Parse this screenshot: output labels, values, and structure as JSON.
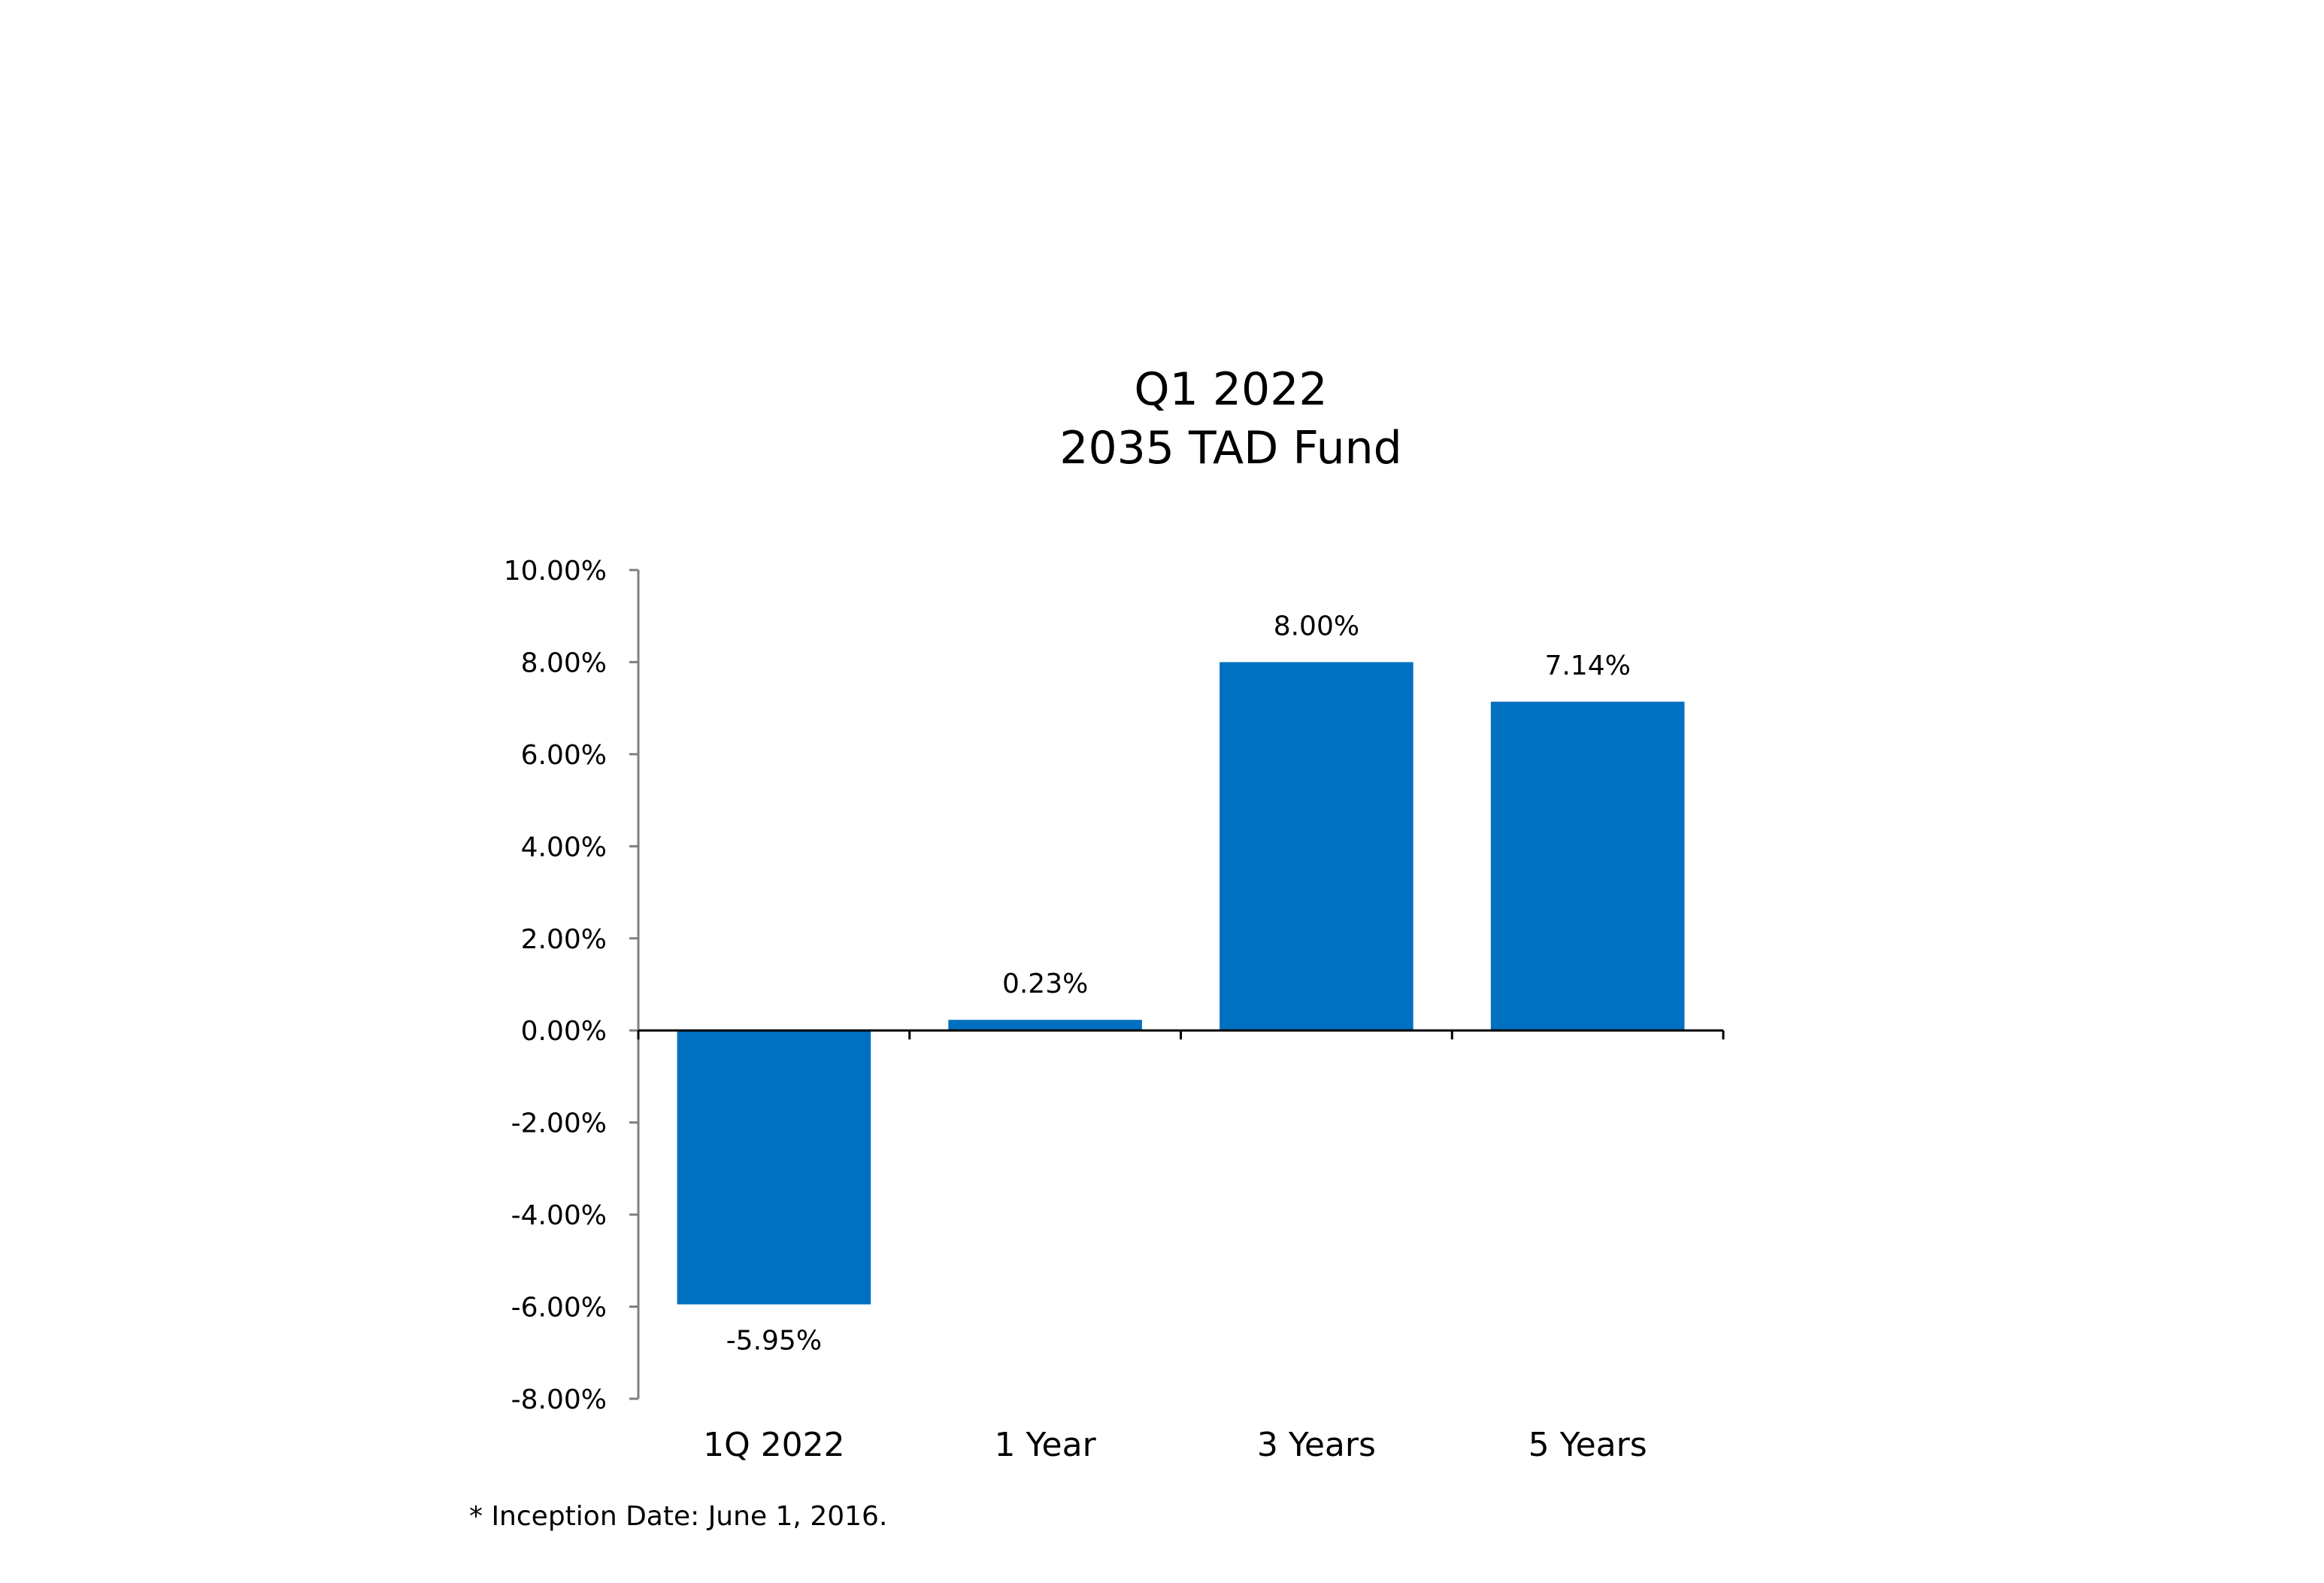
{
  "chart_data": {
    "type": "bar",
    "title_lines": [
      "Q1 2022",
      "2035 TAD Fund"
    ],
    "categories": [
      "1Q 2022",
      "1 Year",
      "3 Years",
      "5 Years"
    ],
    "values": [
      -5.95,
      0.23,
      8.0,
      7.14
    ],
    "data_labels": [
      "-5.95%",
      "0.23%",
      "8.00%",
      "7.14%"
    ],
    "ylim": [
      -8,
      10
    ],
    "yticks": [
      10,
      8,
      6,
      4,
      2,
      0,
      -2,
      -4,
      -6,
      -8
    ],
    "ytick_labels": [
      "10.00%",
      "8.00%",
      "6.00%",
      "4.00%",
      "2.00%",
      "0.00%",
      "-2.00%",
      "-4.00%",
      "-6.00%",
      "-8.00%"
    ],
    "xlabel": "",
    "ylabel": "",
    "grid": false,
    "legend": "none",
    "bar_color": "#0070C0",
    "axis_color": "#7f7f7f"
  },
  "footnote": "* Inception Date: June 1, 2016."
}
